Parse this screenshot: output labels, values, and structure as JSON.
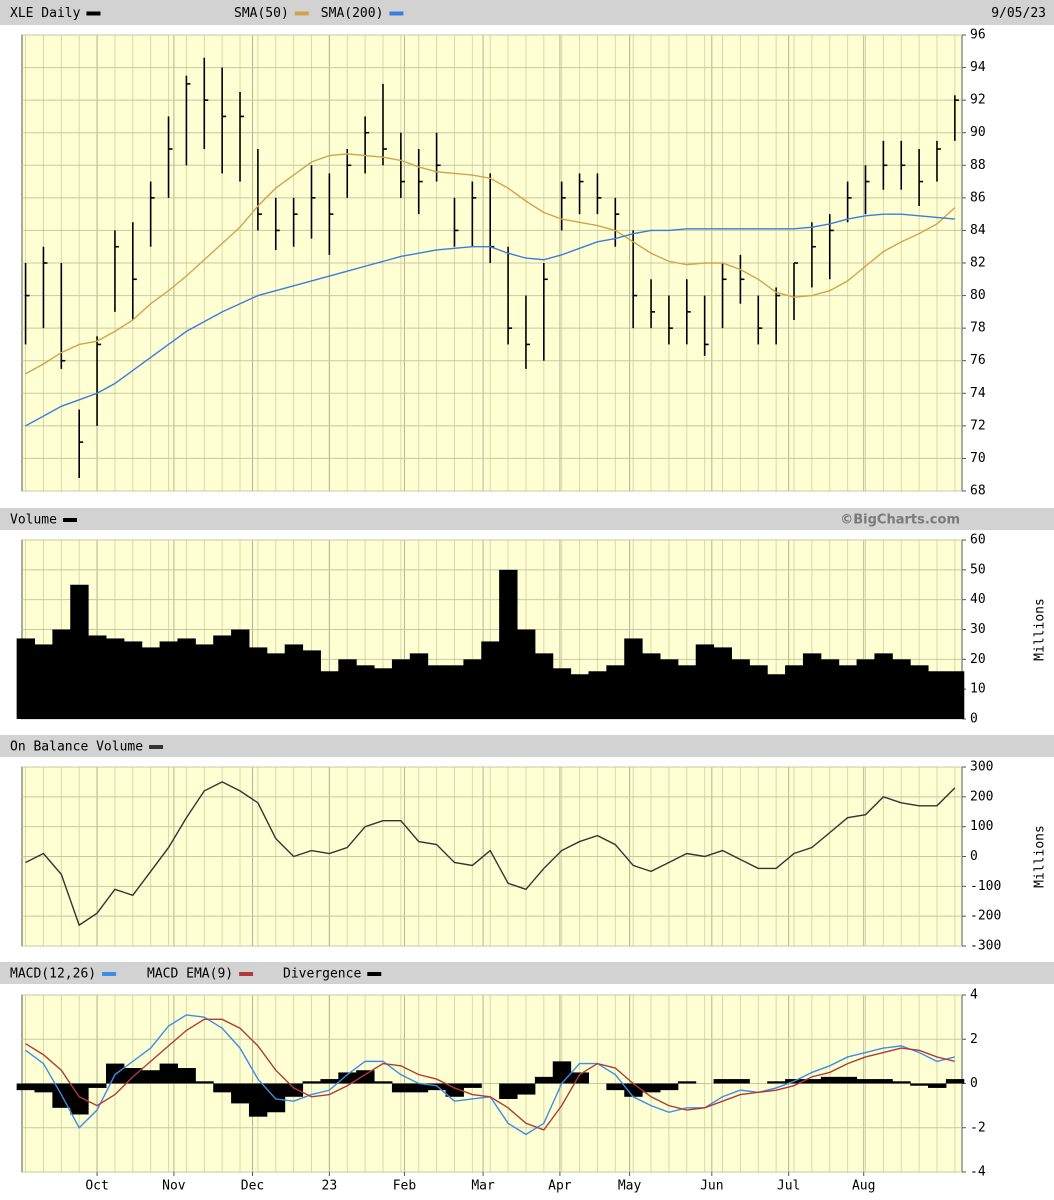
{
  "x_axis": {
    "x": [
      0,
      1,
      2,
      3,
      4,
      5,
      6,
      7,
      8,
      9,
      10,
      11,
      12,
      13,
      14,
      15,
      16,
      17,
      18,
      19,
      20,
      21,
      22,
      23,
      24,
      25,
      26,
      27,
      28,
      29,
      30,
      31,
      32,
      33,
      34,
      35,
      36,
      37,
      38,
      39,
      40,
      41,
      42,
      43,
      44,
      45,
      46,
      47,
      48,
      49,
      50,
      51,
      52
    ],
    "xlim": [
      -0.2,
      52.4
    ],
    "xticks": [
      {
        "value": 4.0,
        "label": "Oct"
      },
      {
        "value": 8.3,
        "label": "Nov"
      },
      {
        "value": 12.7,
        "label": "Dec"
      },
      {
        "value": 17.0,
        "label": "23"
      },
      {
        "value": 21.2,
        "label": "Feb"
      },
      {
        "value": 25.6,
        "label": "Mar"
      },
      {
        "value": 29.9,
        "label": "Apr"
      },
      {
        "value": 33.8,
        "label": "May"
      },
      {
        "value": 38.4,
        "label": "Jun"
      },
      {
        "value": 42.7,
        "label": "Jul"
      },
      {
        "value": 46.9,
        "label": "Aug"
      }
    ]
  },
  "chart_data": [
    {
      "type": "ohlc",
      "date": "9/05/23",
      "ylim": [
        68,
        96
      ],
      "yticks": [
        68,
        70,
        72,
        74,
        76,
        78,
        80,
        82,
        84,
        86,
        88,
        90,
        92,
        94,
        96
      ],
      "grid": true,
      "series": [
        {
          "name": "XLE Daily",
          "color": "#000000",
          "high": [
            82,
            83,
            82,
            73,
            77.5,
            84,
            84.5,
            87,
            91,
            93.5,
            94.6,
            94,
            92.5,
            89,
            86,
            86,
            88,
            87.5,
            89,
            91,
            93,
            90,
            89,
            90,
            86,
            87,
            87.5,
            83,
            80,
            82,
            87,
            87.5,
            87.5,
            86,
            84,
            81,
            80,
            81,
            80,
            82,
            82.5,
            80,
            80.5,
            82,
            84.5,
            85,
            87,
            88,
            89.5,
            89.5,
            89,
            89.5,
            92.3
          ],
          "low": [
            77,
            78,
            75.5,
            68.8,
            72,
            79,
            78.5,
            83,
            86,
            88,
            89,
            87.5,
            87,
            84,
            82.8,
            83,
            83.5,
            82.5,
            86,
            87.5,
            88,
            86,
            85,
            87,
            83,
            83,
            82,
            77,
            75.5,
            76,
            84,
            85,
            85,
            83,
            78,
            78,
            77,
            77,
            76.3,
            78,
            79.5,
            77,
            77,
            78.5,
            80.5,
            81,
            84.5,
            85,
            86.5,
            86.5,
            85.5,
            87,
            89.5
          ],
          "close": [
            80,
            82,
            76,
            71,
            77,
            83,
            81,
            86,
            89,
            93,
            92,
            91,
            91,
            85,
            84,
            85,
            86,
            85,
            88,
            90,
            89,
            87,
            87,
            88,
            84,
            86,
            83,
            78,
            77,
            81,
            86,
            87,
            86,
            85,
            80,
            79,
            78,
            79,
            77,
            81,
            81,
            78,
            80,
            82,
            83,
            84,
            86,
            87,
            88,
            88,
            87,
            89,
            92
          ]
        },
        {
          "name": "SMA(50)",
          "color": "#d4a24c",
          "values": [
            75.2,
            75.8,
            76.5,
            77,
            77.2,
            77.8,
            78.5,
            79.5,
            80.3,
            81.2,
            82.2,
            83.2,
            84.2,
            85.5,
            86.6,
            87.4,
            88.2,
            88.6,
            88.7,
            88.6,
            88.5,
            88.3,
            87.9,
            87.6,
            87.5,
            87.4,
            87.2,
            86.6,
            85.8,
            85.1,
            84.7,
            84.5,
            84.3,
            84.0,
            83.3,
            82.6,
            82.1,
            81.9,
            82.0,
            82.0,
            81.6,
            81.0,
            80.2,
            79.9,
            80.0,
            80.3,
            80.9,
            81.8,
            82.7,
            83.3,
            83.8,
            84.4,
            85.4
          ]
        },
        {
          "name": "SMA(200)",
          "color": "#3b7ddd",
          "values": [
            72.0,
            72.6,
            73.2,
            73.6,
            74.0,
            74.6,
            75.4,
            76.2,
            77.0,
            77.8,
            78.4,
            79.0,
            79.5,
            80.0,
            80.3,
            80.6,
            80.9,
            81.2,
            81.5,
            81.8,
            82.1,
            82.4,
            82.6,
            82.8,
            82.9,
            83.0,
            83.0,
            82.6,
            82.3,
            82.2,
            82.5,
            82.9,
            83.3,
            83.5,
            83.8,
            84.0,
            84.0,
            84.1,
            84.1,
            84.1,
            84.1,
            84.1,
            84.1,
            84.1,
            84.2,
            84.4,
            84.7,
            84.9,
            85.0,
            85.0,
            84.9,
            84.8,
            84.7
          ]
        }
      ]
    },
    {
      "type": "bar",
      "credit": "©BigCharts.com",
      "ylabel": "Millions",
      "ylim": [
        0,
        60
      ],
      "yticks": [
        0,
        10,
        20,
        30,
        40,
        50,
        60
      ],
      "grid": true,
      "series": [
        {
          "name": "Volume",
          "color": "#000000",
          "values": [
            27,
            25,
            30,
            45,
            28,
            27,
            26,
            24,
            26,
            27,
            25,
            28,
            30,
            24,
            22,
            25,
            23,
            16,
            20,
            18,
            17,
            20,
            22,
            18,
            18,
            20,
            26,
            50,
            30,
            22,
            17,
            15,
            16,
            18,
            27,
            22,
            20,
            18,
            25,
            24,
            20,
            18,
            15,
            18,
            22,
            20,
            18,
            20,
            22,
            20,
            18,
            16,
            16
          ]
        }
      ]
    },
    {
      "type": "line",
      "ylabel": "Millions",
      "ylim": [
        -300,
        300
      ],
      "yticks": [
        -300,
        -200,
        -100,
        0,
        100,
        200,
        300
      ],
      "grid": true,
      "series": [
        {
          "name": "On Balance Volume",
          "color": "#333333",
          "values": [
            -20,
            10,
            -60,
            -230,
            -190,
            -110,
            -130,
            -50,
            30,
            130,
            220,
            250,
            220,
            180,
            60,
            0,
            20,
            10,
            30,
            100,
            120,
            120,
            50,
            40,
            -20,
            -30,
            20,
            -90,
            -110,
            -40,
            20,
            50,
            70,
            40,
            -30,
            -50,
            -20,
            10,
            0,
            20,
            -10,
            -40,
            -40,
            10,
            30,
            80,
            130,
            140,
            200,
            180,
            170,
            170,
            230
          ]
        }
      ]
    },
    {
      "type": "macd",
      "ylim": [
        -4,
        4
      ],
      "yticks": [
        -4,
        -2,
        0,
        2,
        4
      ],
      "grid": true,
      "series": [
        {
          "name": "MACD(12,26)",
          "color": "#3b8ee8",
          "kind": "line",
          "values": [
            1.5,
            0.9,
            -0.5,
            -2.0,
            -1.2,
            0.4,
            1.0,
            1.6,
            2.6,
            3.1,
            3.0,
            2.5,
            1.6,
            0.2,
            -0.7,
            -0.8,
            -0.5,
            -0.3,
            0.4,
            1.0,
            1.0,
            0.4,
            0,
            -0.1,
            -0.8,
            -0.7,
            -0.6,
            -1.8,
            -2.3,
            -1.8,
            0,
            0.9,
            0.9,
            0.4,
            -0.6,
            -1.0,
            -1.3,
            -1.1,
            -1.1,
            -0.6,
            -0.3,
            -0.4,
            -0.2,
            0.1,
            0.5,
            0.8,
            1.2,
            1.4,
            1.6,
            1.7,
            1.4,
            1.0,
            1.2
          ]
        },
        {
          "name": "MACD EMA(9)",
          "color": "#b03a3a",
          "kind": "line",
          "values": [
            1.8,
            1.3,
            0.6,
            -0.6,
            -1.0,
            -0.5,
            0.3,
            1.0,
            1.7,
            2.4,
            2.9,
            2.9,
            2.5,
            1.7,
            0.6,
            -0.2,
            -0.6,
            -0.5,
            -0.1,
            0.4,
            0.9,
            0.8,
            0.4,
            0.2,
            -0.2,
            -0.5,
            -0.6,
            -1.1,
            -1.8,
            -2.1,
            -1.0,
            0.4,
            0.9,
            0.7,
            0,
            -0.6,
            -1.0,
            -1.2,
            -1.1,
            -0.8,
            -0.5,
            -0.4,
            -0.3,
            -0.1,
            0.3,
            0.5,
            0.9,
            1.2,
            1.4,
            1.6,
            1.5,
            1.2,
            1.0
          ]
        },
        {
          "name": "Divergence",
          "color": "#000000",
          "kind": "bar",
          "values": [
            -0.3,
            -0.4,
            -1.1,
            -1.4,
            -0.2,
            0.9,
            0.7,
            0.6,
            0.9,
            0.7,
            0.1,
            -0.4,
            -0.9,
            -1.5,
            -1.3,
            -0.6,
            0.1,
            0.2,
            0.5,
            0.6,
            0.1,
            -0.4,
            -0.4,
            -0.3,
            -0.6,
            -0.2,
            0,
            -0.7,
            -0.5,
            0.3,
            1.0,
            0.5,
            0,
            -0.3,
            -0.6,
            -0.4,
            -0.3,
            0.1,
            0,
            0.2,
            0.2,
            0,
            0.1,
            0.2,
            0.2,
            0.3,
            0.3,
            0.2,
            0.2,
            0.1,
            -0.1,
            -0.2,
            0.2
          ]
        }
      ]
    }
  ]
}
